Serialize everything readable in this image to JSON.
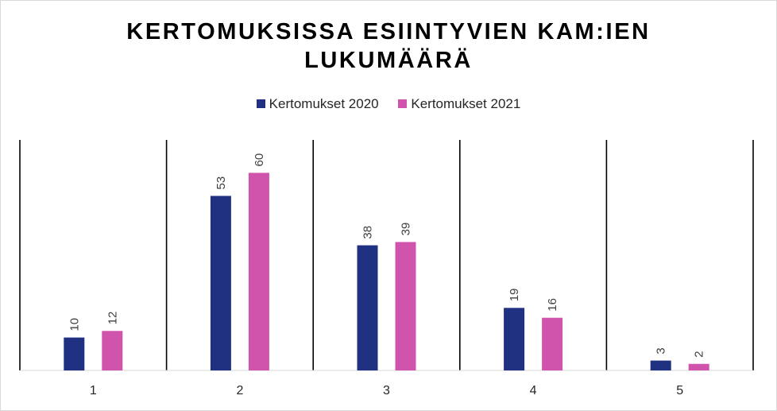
{
  "chart_data": {
    "type": "bar",
    "title_lines": [
      "KERTOMUKSISSA ESIINTYVIEN KAM:IEN",
      "LUKUMÄÄRÄ"
    ],
    "categories": [
      "1",
      "2",
      "3",
      "4",
      "5"
    ],
    "series": [
      {
        "name": "Kertomukset 2020",
        "color": "#203182",
        "values": [
          10,
          53,
          38,
          19,
          3
        ]
      },
      {
        "name": "Kertomukset 2021",
        "color": "#D054AC",
        "values": [
          12,
          60,
          39,
          16,
          2
        ]
      }
    ],
    "ylim": [
      0,
      70
    ],
    "grid": false,
    "legend_position": "top"
  }
}
